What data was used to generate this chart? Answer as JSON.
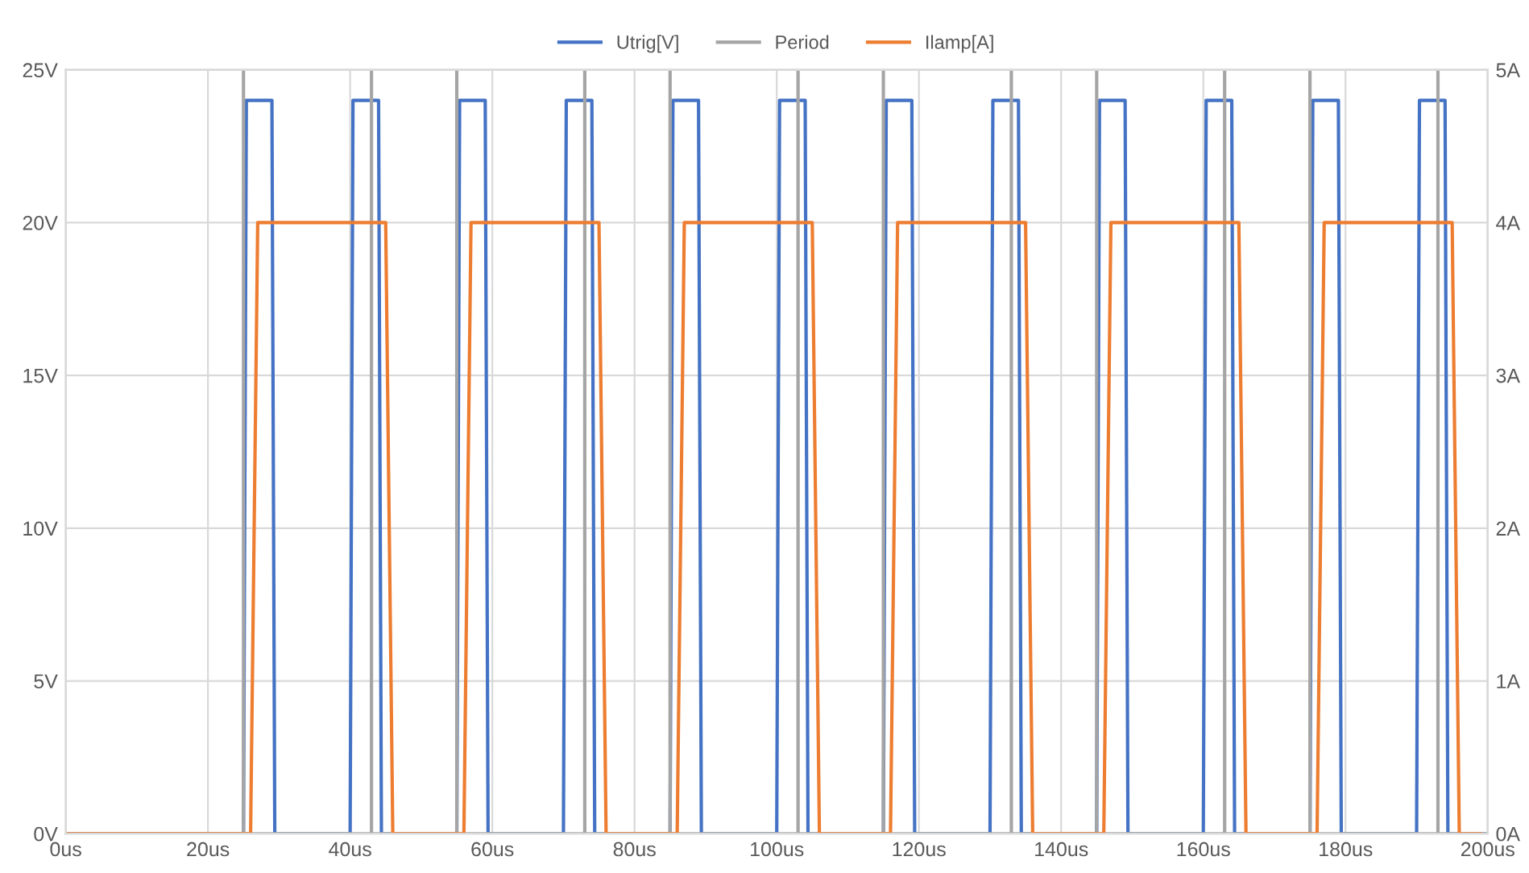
{
  "chart_data": {
    "type": "line",
    "legend": "top",
    "grid": true,
    "line_style": "solid",
    "marker": "none",
    "xlim": [
      0,
      200
    ],
    "xticks": [
      {
        "value": 0,
        "label": "0us"
      },
      {
        "value": 20,
        "label": "20us"
      },
      {
        "value": 40,
        "label": "40us"
      },
      {
        "value": 60,
        "label": "60us"
      },
      {
        "value": 80,
        "label": "80us"
      },
      {
        "value": 100,
        "label": "100us"
      },
      {
        "value": 120,
        "label": "120us"
      },
      {
        "value": 140,
        "label": "140us"
      },
      {
        "value": 160,
        "label": "160us"
      },
      {
        "value": 180,
        "label": "180us"
      },
      {
        "value": 200,
        "label": "200us"
      }
    ],
    "ylim": [
      0,
      25
    ],
    "yticks": [
      {
        "value": 0,
        "label": "0V"
      },
      {
        "value": 5,
        "label": "5V"
      },
      {
        "value": 10,
        "label": "10V"
      },
      {
        "value": 15,
        "label": "15V"
      },
      {
        "value": 20,
        "label": "20V"
      },
      {
        "value": 25,
        "label": "25V"
      }
    ],
    "y2lim": [
      0,
      5
    ],
    "y2ticks": [
      {
        "value": 0,
        "label": "0A"
      },
      {
        "value": 1,
        "label": "1A"
      },
      {
        "value": 2,
        "label": "2A"
      },
      {
        "value": 3,
        "label": "3A"
      },
      {
        "value": 4,
        "label": "4A"
      },
      {
        "value": 5,
        "label": "5A"
      }
    ],
    "series": [
      {
        "name": "Utrig[V]",
        "color": "#4472c4",
        "x": [
          0,
          25,
          25.4,
          29,
          29.4,
          40,
          40.4,
          44,
          44.4,
          55,
          55.4,
          59,
          59.4,
          70,
          70.4,
          74,
          74.4,
          85,
          85.4,
          89,
          89.4,
          100,
          100.4,
          104,
          104.4,
          115,
          115.4,
          119,
          119.4,
          130,
          130.4,
          134,
          134.4,
          145,
          145.4,
          149,
          149.4,
          160,
          160.4,
          164,
          164.4,
          175,
          175.4,
          179,
          179.4,
          190,
          190.4,
          194,
          194.4,
          200
        ],
        "values": [
          0,
          0,
          24,
          24,
          0,
          0,
          24,
          24,
          0,
          0,
          24,
          24,
          0,
          0,
          24,
          24,
          0,
          0,
          24,
          24,
          0,
          0,
          24,
          24,
          0,
          0,
          24,
          24,
          0,
          0,
          24,
          24,
          0,
          0,
          24,
          24,
          0,
          0,
          24,
          24,
          0,
          0,
          24,
          24,
          0,
          0,
          24,
          24,
          0,
          0
        ]
      },
      {
        "name": "Period",
        "color": "#a5a5a5",
        "x": [
          0,
          25,
          25,
          25,
          43,
          43,
          43,
          55,
          55,
          55,
          73,
          73,
          73,
          85,
          85,
          85,
          103,
          103,
          103,
          115,
          115,
          115,
          133,
          133,
          133,
          145,
          145,
          145,
          163,
          163,
          163,
          175,
          175,
          175,
          193,
          193,
          193,
          200
        ],
        "values": [
          0,
          0,
          25,
          0,
          0,
          25,
          0,
          0,
          25,
          0,
          0,
          25,
          0,
          0,
          25,
          0,
          0,
          25,
          0,
          0,
          25,
          0,
          0,
          25,
          0,
          0,
          25,
          0,
          0,
          25,
          0,
          0,
          25,
          0,
          0,
          25,
          0,
          0
        ]
      },
      {
        "name": "Ilamp[A]",
        "color": "#ed7d31",
        "axis": "y2",
        "x": [
          0,
          26,
          27,
          45,
          46,
          56,
          57,
          75,
          76,
          86,
          87,
          105,
          106,
          116,
          117,
          135,
          136,
          146,
          147,
          165,
          166,
          176,
          177,
          195,
          196,
          199
        ],
        "values": [
          0,
          0,
          4,
          4,
          0,
          0,
          4,
          4,
          0,
          0,
          4,
          4,
          0,
          0,
          4,
          4,
          0,
          0,
          4,
          4,
          0,
          0,
          4,
          4,
          0,
          0
        ]
      }
    ]
  }
}
